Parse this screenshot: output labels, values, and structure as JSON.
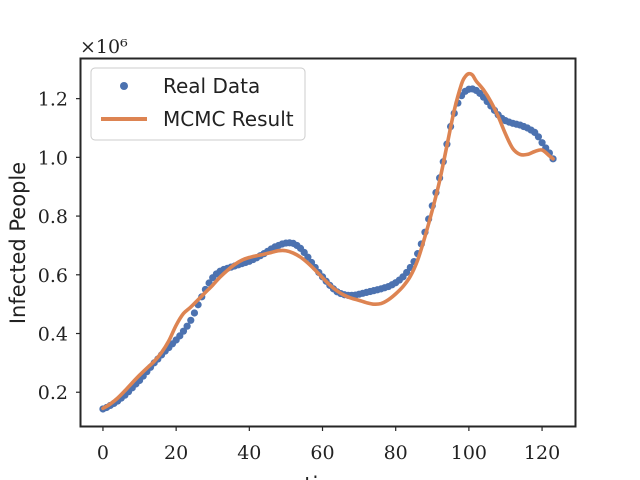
{
  "chart_data": {
    "type": "line",
    "xlabel": "time",
    "ylabel": "Infected People",
    "y_multiplier": "×10⁶",
    "xlim": [
      -6,
      129
    ],
    "ylim": [
      0.085,
      1.335
    ],
    "x_ticks": [
      0,
      20,
      40,
      60,
      80,
      100,
      120
    ],
    "x_tick_labels": [
      "0",
      "20",
      "40",
      "60",
      "80",
      "100",
      "120"
    ],
    "y_ticks": [
      0.2,
      0.4,
      0.6,
      0.8,
      1.0,
      1.2
    ],
    "y_tick_labels": [
      "0.2",
      "0.4",
      "0.6",
      "0.8",
      "1.0",
      "1.2"
    ],
    "legend_position": "top-left",
    "grid": false,
    "series": [
      {
        "name": "Real Data",
        "kind": "scatter",
        "color": "#4c72b0",
        "x": [
          0,
          1,
          2,
          3,
          4,
          5,
          6,
          7,
          8,
          9,
          10,
          11,
          12,
          13,
          14,
          15,
          16,
          17,
          18,
          19,
          20,
          21,
          22,
          23,
          24,
          25,
          26,
          27,
          28,
          29,
          30,
          31,
          32,
          33,
          34,
          35,
          36,
          37,
          38,
          39,
          40,
          41,
          42,
          43,
          44,
          45,
          46,
          47,
          48,
          49,
          50,
          51,
          52,
          53,
          54,
          55,
          56,
          57,
          58,
          59,
          60,
          61,
          62,
          63,
          64,
          65,
          66,
          67,
          68,
          69,
          70,
          71,
          72,
          73,
          74,
          75,
          76,
          77,
          78,
          79,
          80,
          81,
          82,
          83,
          84,
          85,
          86,
          87,
          88,
          89,
          90,
          91,
          92,
          93,
          94,
          95,
          96,
          97,
          98,
          99,
          100,
          101,
          102,
          103,
          104,
          105,
          106,
          107,
          108,
          109,
          110,
          111,
          112,
          113,
          114,
          115,
          116,
          117,
          118,
          119,
          120,
          121,
          122,
          123
        ],
        "y": [
          0.143,
          0.148,
          0.155,
          0.162,
          0.17,
          0.18,
          0.19,
          0.202,
          0.215,
          0.228,
          0.24,
          0.255,
          0.27,
          0.285,
          0.3,
          0.313,
          0.327,
          0.34,
          0.352,
          0.365,
          0.378,
          0.392,
          0.408,
          0.425,
          0.445,
          0.47,
          0.498,
          0.525,
          0.55,
          0.572,
          0.59,
          0.603,
          0.612,
          0.618,
          0.622,
          0.626,
          0.63,
          0.634,
          0.638,
          0.642,
          0.646,
          0.652,
          0.658,
          0.665,
          0.672,
          0.68,
          0.688,
          0.695,
          0.7,
          0.705,
          0.708,
          0.709,
          0.707,
          0.7,
          0.69,
          0.676,
          0.66,
          0.642,
          0.625,
          0.608,
          0.593,
          0.578,
          0.564,
          0.552,
          0.542,
          0.536,
          0.532,
          0.53,
          0.53,
          0.531,
          0.534,
          0.537,
          0.54,
          0.543,
          0.546,
          0.549,
          0.552,
          0.556,
          0.56,
          0.566,
          0.573,
          0.582,
          0.593,
          0.608,
          0.625,
          0.645,
          0.672,
          0.705,
          0.745,
          0.79,
          0.835,
          0.88,
          0.93,
          0.985,
          1.045,
          1.105,
          1.15,
          1.185,
          1.21,
          1.225,
          1.232,
          1.233,
          1.228,
          1.218,
          1.205,
          1.19,
          1.175,
          1.16,
          1.145,
          1.133,
          1.125,
          1.12,
          1.116,
          1.113,
          1.11,
          1.105,
          1.1,
          1.093,
          1.085,
          1.07,
          1.05,
          1.032,
          1.015,
          0.995
        ]
      },
      {
        "name": "MCMC Result",
        "kind": "line",
        "color": "#dd8452",
        "x": [
          0,
          2,
          4,
          6,
          8,
          10,
          12,
          14,
          16,
          18,
          20,
          22,
          24,
          26,
          28,
          30,
          32,
          34,
          36,
          38,
          40,
          42,
          44,
          46,
          48,
          50,
          52,
          54,
          56,
          58,
          60,
          62,
          64,
          66,
          68,
          70,
          72,
          74,
          76,
          78,
          80,
          82,
          84,
          86,
          88,
          90,
          92,
          94,
          96,
          98,
          99,
          100,
          101,
          102,
          104,
          106,
          108,
          110,
          112,
          114,
          116,
          118,
          120,
          122,
          123
        ],
        "y": [
          0.145,
          0.16,
          0.18,
          0.205,
          0.232,
          0.258,
          0.282,
          0.305,
          0.335,
          0.375,
          0.428,
          0.468,
          0.49,
          0.515,
          0.54,
          0.565,
          0.592,
          0.615,
          0.635,
          0.65,
          0.659,
          0.665,
          0.67,
          0.676,
          0.682,
          0.682,
          0.674,
          0.66,
          0.64,
          0.616,
          0.59,
          0.565,
          0.545,
          0.53,
          0.52,
          0.513,
          0.505,
          0.5,
          0.502,
          0.515,
          0.535,
          0.56,
          0.595,
          0.65,
          0.73,
          0.82,
          0.92,
          1.04,
          1.16,
          1.25,
          1.275,
          1.285,
          1.28,
          1.26,
          1.23,
          1.19,
          1.14,
          1.08,
          1.03,
          1.01,
          1.01,
          1.02,
          1.025,
          1.005,
          0.995
        ]
      }
    ]
  }
}
